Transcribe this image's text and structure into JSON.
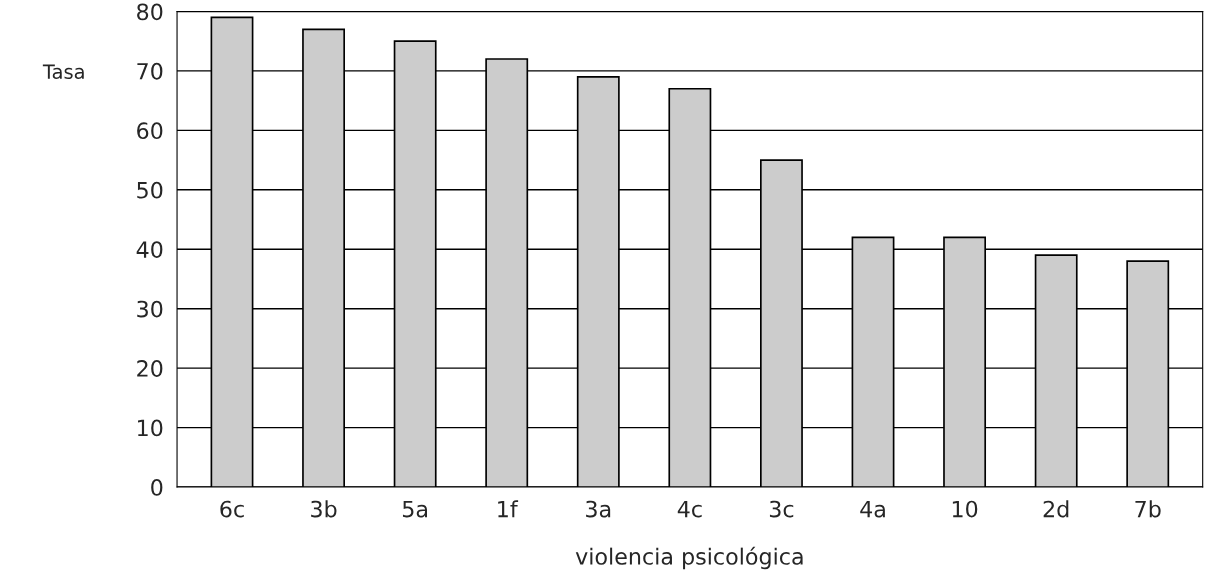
{
  "chart_data": {
    "type": "bar",
    "xlabel": "violencia psicológica",
    "ylabel": "Tasa",
    "categories": [
      "6c",
      "3b",
      "5a",
      "1f",
      "3a",
      "4c",
      "3c",
      "4a",
      "10",
      "2d",
      "7b"
    ],
    "values": [
      79,
      77,
      75,
      72,
      69,
      67,
      55,
      42,
      42,
      39,
      38
    ],
    "color": "#cccccc",
    "ylim": [
      0,
      80
    ],
    "yticks": [
      0,
      10,
      20,
      30,
      40,
      50,
      60,
      70,
      80
    ],
    "grid": "y"
  }
}
